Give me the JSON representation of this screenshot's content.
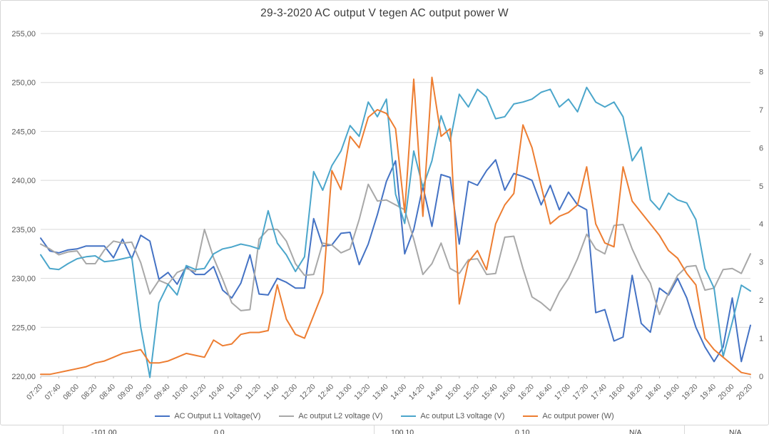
{
  "chart_data": {
    "type": "line",
    "title": "29-3-2020 AC output V tegen AC output power W",
    "xlabel": "",
    "ylabel": "",
    "ylim": [
      220,
      255
    ],
    "y2lim": [
      0,
      9
    ],
    "grid": "horizontal",
    "legend_position": "bottom",
    "x_tick_labels": [
      "07:20",
      "07:40",
      "08:00",
      "08:20",
      "08:40",
      "09:00",
      "09:20",
      "09:40",
      "10:00",
      "10:20",
      "10:40",
      "11:00",
      "11:20",
      "11:40",
      "12:00",
      "12:20",
      "12:40",
      "13:00",
      "13:20",
      "13:40",
      "14:00",
      "14:20",
      "14:40",
      "15:00",
      "15:20",
      "15:40",
      "16:00",
      "16:20",
      "16:40",
      "17:00",
      "17:20",
      "17:40",
      "18:00",
      "18:20",
      "18:40",
      "19:00",
      "19:20",
      "19:40",
      "20:00",
      "20:20"
    ],
    "label_every": 2,
    "sample_interval_minutes": 10,
    "y_ticks": [
      {
        "v": 220,
        "label": "220,00"
      },
      {
        "v": 225,
        "label": "225,00"
      },
      {
        "v": 230,
        "label": "230,00"
      },
      {
        "v": 235,
        "label": "235,00"
      },
      {
        "v": 240,
        "label": "240,00"
      },
      {
        "v": 245,
        "label": "245,00"
      },
      {
        "v": 250,
        "label": "250,00"
      },
      {
        "v": 255,
        "label": "255,00"
      }
    ],
    "y2_ticks": [
      {
        "v": 0,
        "label": "0"
      },
      {
        "v": 1,
        "label": "1"
      },
      {
        "v": 2,
        "label": "2"
      },
      {
        "v": 3,
        "label": "3"
      },
      {
        "v": 4,
        "label": "4"
      },
      {
        "v": 5,
        "label": "5"
      },
      {
        "v": 6,
        "label": "6"
      },
      {
        "v": 7,
        "label": "7"
      },
      {
        "v": 8,
        "label": "8"
      },
      {
        "v": 9,
        "label": "9"
      }
    ],
    "series": [
      {
        "name": "AC Output L1 Voltage(V)",
        "color": "#4472c4",
        "axis": "left",
        "values": [
          234.1,
          232.8,
          232.6,
          232.9,
          233.0,
          233.3,
          233.3,
          233.3,
          232.1,
          234.0,
          232.0,
          234.4,
          233.8,
          229.9,
          230.6,
          229.4,
          231.2,
          230.4,
          230.4,
          231.2,
          228.8,
          228.0,
          229.5,
          232.4,
          228.4,
          228.3,
          230.0,
          229.6,
          229.0,
          229.0,
          236.1,
          233.3,
          233.4,
          234.6,
          234.7,
          231.4,
          233.5,
          236.5,
          239.9,
          242.0,
          232.5,
          235.0,
          239.4,
          235.3,
          240.6,
          240.3,
          233.5,
          239.9,
          239.5,
          241.0,
          242.1,
          239.0,
          240.7,
          240.4,
          240.0,
          237.5,
          239.5,
          237.0,
          238.8,
          237.5,
          237.0,
          226.5,
          226.8,
          223.6,
          224.0,
          230.3,
          225.4,
          224.5,
          229.0,
          228.3,
          230.0,
          228.0,
          225.0,
          223.0,
          221.5,
          223.0,
          228.0,
          221.5,
          225.2
        ]
      },
      {
        "name": "Ac output L2 voltage (V)",
        "color": "#a8a8a8",
        "axis": "left",
        "values": [
          233.5,
          233.0,
          232.4,
          232.7,
          232.8,
          231.5,
          231.5,
          232.9,
          233.8,
          233.6,
          233.7,
          231.6,
          228.4,
          229.8,
          229.4,
          230.6,
          231.0,
          230.7,
          235.0,
          232.1,
          229.9,
          227.5,
          226.7,
          226.8,
          234.0,
          235.0,
          235.0,
          233.8,
          231.5,
          230.3,
          230.4,
          233.6,
          233.4,
          232.6,
          233.0,
          236.0,
          239.6,
          237.9,
          238.0,
          237.5,
          237.0,
          234.0,
          230.4,
          231.5,
          233.6,
          231.0,
          230.5,
          231.9,
          232.0,
          230.4,
          230.5,
          234.2,
          234.3,
          231.0,
          228.1,
          227.5,
          226.7,
          228.6,
          230.0,
          232.0,
          234.5,
          233.0,
          232.5,
          235.4,
          235.5,
          233.0,
          231.0,
          229.5,
          226.3,
          228.5,
          230.3,
          231.2,
          231.3,
          228.8,
          229.0,
          230.9,
          231.0,
          230.5,
          232.5
        ]
      },
      {
        "name": "Ac output L3 voltage (V)",
        "color": "#4ba6cb",
        "axis": "left",
        "values": [
          232.4,
          231.0,
          230.9,
          231.5,
          232.0,
          232.2,
          232.3,
          231.7,
          231.8,
          232.0,
          232.2,
          225.0,
          219.9,
          227.5,
          229.4,
          228.3,
          231.3,
          230.9,
          231.0,
          232.5,
          233.0,
          233.2,
          233.5,
          233.3,
          233.0,
          236.9,
          233.6,
          232.4,
          230.7,
          232.2,
          240.9,
          239.0,
          241.5,
          243.0,
          245.6,
          244.5,
          248.0,
          246.5,
          248.3,
          238.6,
          235.6,
          243.0,
          239.3,
          242.0,
          246.6,
          244.0,
          248.8,
          247.5,
          249.3,
          248.5,
          246.3,
          246.5,
          247.8,
          248.0,
          248.3,
          249.0,
          249.3,
          247.5,
          248.3,
          247.0,
          249.5,
          248.0,
          247.5,
          248.0,
          246.5,
          242.0,
          243.4,
          238.0,
          237.0,
          238.7,
          238.0,
          237.7,
          236.0,
          231.0,
          229.0,
          222.0,
          225.5,
          229.3,
          228.7
        ]
      },
      {
        "name": "Ac output power (W)",
        "color": "#ed7d31",
        "axis": "right",
        "values": [
          0.05,
          0.05,
          0.1,
          0.15,
          0.2,
          0.25,
          0.35,
          0.4,
          0.5,
          0.6,
          0.65,
          0.7,
          0.35,
          0.35,
          0.4,
          0.5,
          0.6,
          0.55,
          0.5,
          0.95,
          0.8,
          0.85,
          1.1,
          1.15,
          1.15,
          1.2,
          2.4,
          1.5,
          1.1,
          1.0,
          1.6,
          2.2,
          5.4,
          4.9,
          6.3,
          6.0,
          6.8,
          7.0,
          6.9,
          6.5,
          4.3,
          7.8,
          4.2,
          7.85,
          6.3,
          6.5,
          1.9,
          3.0,
          3.3,
          2.8,
          4.0,
          4.5,
          4.8,
          6.6,
          6.0,
          5.0,
          4.0,
          4.2,
          4.3,
          4.5,
          5.5,
          4.0,
          3.5,
          3.4,
          5.5,
          4.6,
          4.3,
          4.0,
          3.7,
          3.3,
          3.1,
          2.7,
          2.4,
          1.0,
          0.7,
          0.5,
          0.3,
          0.1,
          0.05
        ]
      }
    ]
  },
  "sheet_row": {
    "cells": [
      {
        "text": "-101.00"
      },
      {
        "text": "0.0"
      },
      {
        "text": "100.10"
      },
      {
        "text": "0.10"
      },
      {
        "text": "N/A"
      },
      {
        "text": "N/A"
      }
    ]
  }
}
